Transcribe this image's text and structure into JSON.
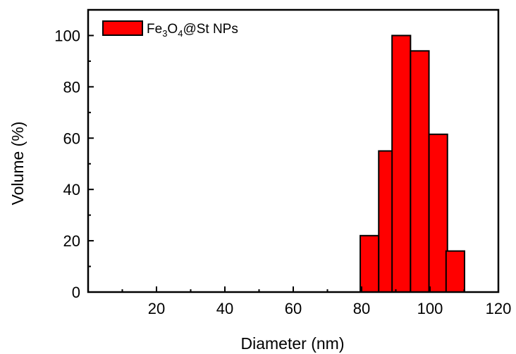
{
  "chart_data": {
    "type": "bar",
    "xlabel": "Diameter (nm)",
    "ylabel": "Volume (%)",
    "xlim": [
      0,
      120
    ],
    "ylim": [
      0,
      110
    ],
    "x_ticks": [
      20,
      40,
      60,
      80,
      100,
      120
    ],
    "y_ticks": [
      0,
      20,
      40,
      60,
      80,
      100
    ],
    "grid": false,
    "legend_position": "top-left",
    "series": [
      {
        "name_parts": [
          "Fe",
          "3",
          "O",
          "4",
          "@St NPs"
        ],
        "color": "#ff0000",
        "bin_width": 5.4,
        "x": [
          82.3,
          87.7,
          91.6,
          97.0,
          102.4,
          107.4
        ],
        "values": [
          22,
          55,
          100,
          94,
          61.5,
          16
        ]
      }
    ]
  }
}
